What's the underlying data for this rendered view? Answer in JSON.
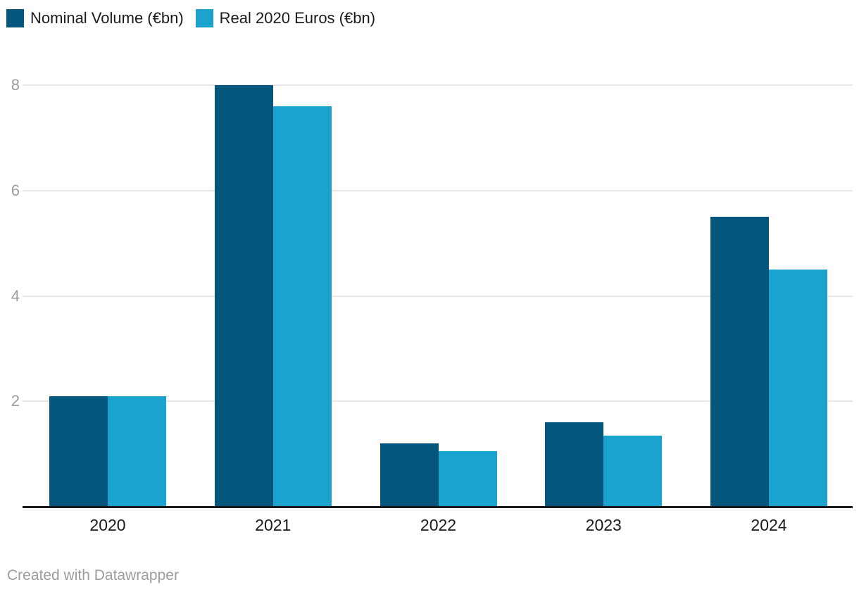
{
  "chart_data": {
    "type": "bar",
    "grouped": true,
    "title": "",
    "xlabel": "",
    "ylabel": "",
    "categories": [
      "2020",
      "2021",
      "2022",
      "2023",
      "2024"
    ],
    "series": [
      {
        "name": "Nominal Volume (€bn)",
        "color": "#05567d",
        "values": [
          2.1,
          8,
          1.2,
          1.6,
          5.5
        ]
      },
      {
        "name": "Real 2020 Euros (€bn)",
        "color": "#1ca2cf",
        "values": [
          2.1,
          7.6,
          1.05,
          1.35,
          4.5
        ]
      }
    ],
    "yticks": [
      2,
      4,
      6,
      8
    ],
    "ylim": [
      0,
      8.5
    ],
    "grid": "horizontal",
    "legend_position": "top-left",
    "colors": {
      "gridline": "#e6e6e6",
      "baseline": "#18191a",
      "y_tick_label": "#9c9c9c",
      "x_tick_label": "#1a1a1a"
    }
  },
  "footer": {
    "credit": "Created with Datawrapper"
  }
}
